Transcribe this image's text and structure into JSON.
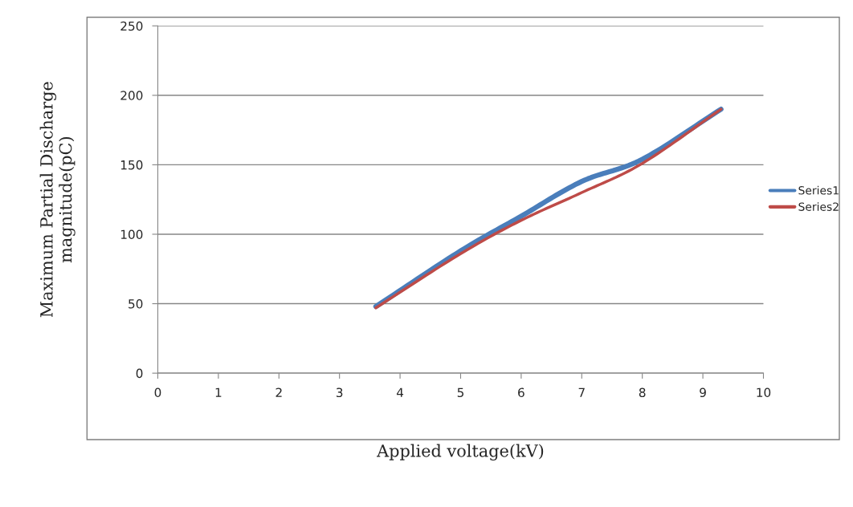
{
  "chart_data": {
    "type": "line",
    "xlabel": "Applied voltage(kV)",
    "ylabel": "Maximum Partial Discharge\nmagnitude(pC)",
    "x": [
      3.6,
      5,
      6,
      7,
      8,
      9.3
    ],
    "series": [
      {
        "name": "Series1",
        "color": "#4a7ebb",
        "values": [
          48,
          88,
          113,
          138,
          154,
          190
        ]
      },
      {
        "name": "Series2",
        "color": "#be4b48",
        "values": [
          47,
          86,
          110,
          130,
          151,
          190
        ]
      }
    ],
    "xlim": [
      0,
      10
    ],
    "xticks": [
      0,
      1,
      2,
      3,
      4,
      5,
      6,
      7,
      8,
      9,
      10
    ],
    "ylim": [
      0,
      250
    ],
    "yticks": [
      0,
      50,
      100,
      150,
      200,
      250
    ],
    "grid": "y",
    "legend": "right",
    "marker": "none",
    "line_style": "solid"
  }
}
